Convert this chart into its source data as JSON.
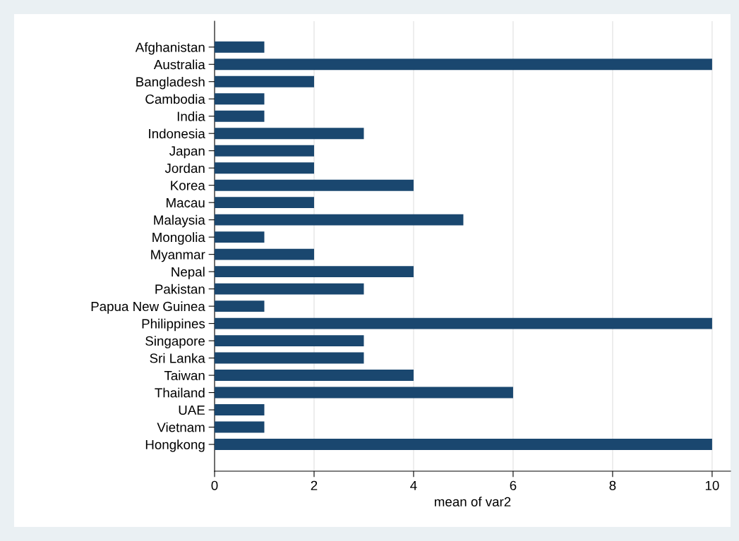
{
  "chart_data": {
    "type": "bar",
    "orientation": "horizontal",
    "xlabel": "mean of var2",
    "categories": [
      "Afghanistan",
      "Australia",
      "Bangladesh",
      "Cambodia",
      "India",
      "Indonesia",
      "Japan",
      "Jordan",
      "Korea",
      "Macau",
      "Malaysia",
      "Mongolia",
      "Myanmar",
      "Nepal",
      "Pakistan",
      "Papua New Guinea",
      "Philippines",
      "Singapore",
      "Sri Lanka",
      "Taiwan",
      "Thailand",
      "UAE",
      "Vietnam",
      "Hongkong"
    ],
    "values": [
      1,
      10,
      2,
      1,
      1,
      3,
      2,
      2,
      4,
      2,
      5,
      1,
      2,
      4,
      3,
      1,
      10,
      3,
      3,
      4,
      6,
      1,
      1,
      10
    ],
    "color": "#1a476f",
    "xlim": [
      0,
      10.37
    ],
    "xticks": [
      0,
      2,
      4,
      6,
      8,
      10
    ],
    "grid": "x"
  }
}
